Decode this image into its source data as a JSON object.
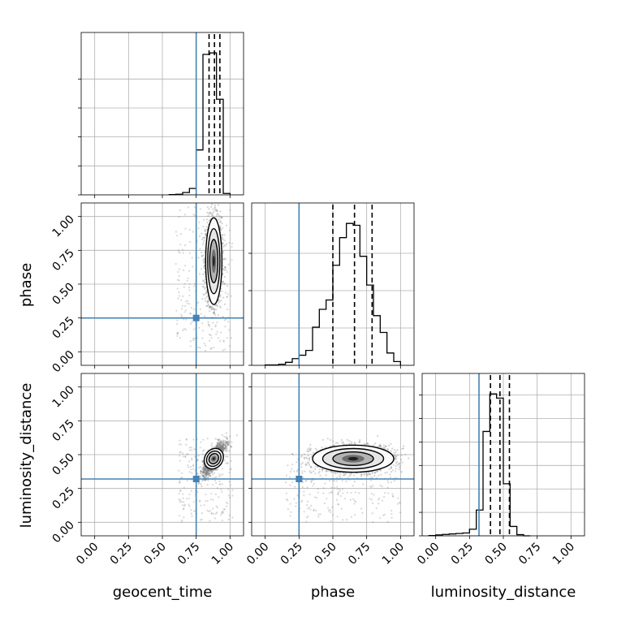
{
  "chart_data": {
    "type": "corner",
    "parameters": [
      "geocent_time",
      "phase",
      "luminosity_distance"
    ],
    "axis_range": [
      -0.1,
      1.1
    ],
    "ticks": [
      0.0,
      0.25,
      0.5,
      0.75,
      1.0
    ],
    "tick_labels": [
      "0.00",
      "0.25",
      "0.50",
      "0.75",
      "1.00"
    ],
    "grid": true,
    "colors": {
      "truth": "#4682b4",
      "hist": "#000000",
      "points": "#808080"
    },
    "truths": {
      "geocent_time": 0.75,
      "phase": 0.25,
      "luminosity_distance": 0.32
    },
    "histograms": [
      {
        "parameter": "geocent_time",
        "bin_edges": [
          0.55,
          0.6,
          0.65,
          0.7,
          0.75,
          0.8,
          0.85,
          0.9,
          0.95,
          1.0
        ],
        "counts": [
          1,
          2,
          8,
          22,
          155,
          485,
          490,
          330,
          5
        ],
        "quantiles": [
          0.845,
          0.885,
          0.925
        ]
      },
      {
        "parameter": "phase",
        "bin_edges": [
          0.0,
          0.05,
          0.1,
          0.15,
          0.2,
          0.25,
          0.3,
          0.35,
          0.4,
          0.45,
          0.5,
          0.55,
          0.6,
          0.65,
          0.7,
          0.75,
          0.8,
          0.85,
          0.9,
          0.95,
          1.0
        ],
        "counts": [
          1,
          1,
          3,
          8,
          18,
          27,
          40,
          102,
          150,
          175,
          268,
          342,
          380,
          375,
          292,
          215,
          133,
          88,
          33,
          10
        ],
        "quantiles": [
          0.5,
          0.66,
          0.79
        ]
      },
      {
        "parameter": "luminosity_distance",
        "bin_edges": [
          -0.05,
          0.0,
          0.05,
          0.1,
          0.15,
          0.2,
          0.25,
          0.3,
          0.35,
          0.4,
          0.45,
          0.5,
          0.55,
          0.6,
          0.65,
          0.7
        ],
        "counts": [
          1,
          4,
          6,
          8,
          10,
          12,
          28,
          110,
          445,
          605,
          587,
          222,
          40,
          5,
          0
        ],
        "quantiles": [
          0.405,
          0.475,
          0.545
        ]
      }
    ],
    "pairs": [
      {
        "x": "geocent_time",
        "y": "phase",
        "mean": [
          0.88,
          0.67
        ],
        "sd": [
          0.03,
          0.16
        ],
        "rho": 0.0
      },
      {
        "x": "geocent_time",
        "y": "luminosity_distance",
        "mean": [
          0.88,
          0.47
        ],
        "sd": [
          0.04,
          0.06
        ],
        "rho": 0.8
      },
      {
        "x": "phase",
        "y": "luminosity_distance",
        "mean": [
          0.65,
          0.47
        ],
        "sd": [
          0.15,
          0.05
        ],
        "rho": 0.05
      }
    ]
  }
}
